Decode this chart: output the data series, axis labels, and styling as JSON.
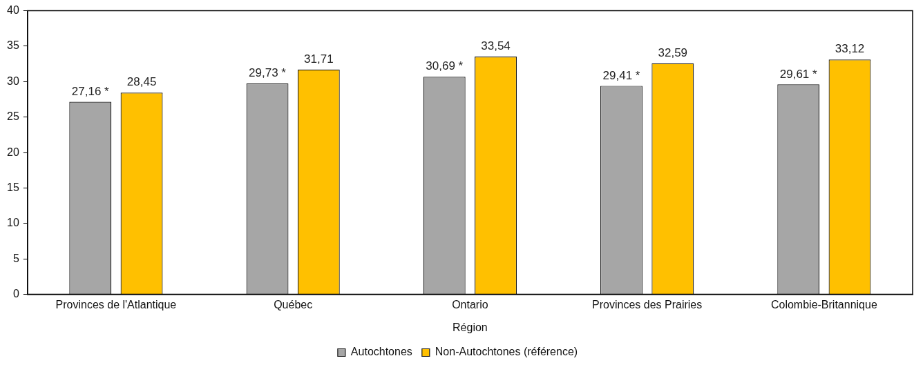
{
  "chart_data": {
    "type": "bar",
    "xlabel": "Région",
    "categories": [
      "Provinces de l'Atlantique",
      "Québec",
      "Ontario",
      "Provinces des Prairies",
      "Colombie-Britannique"
    ],
    "series": [
      {
        "name": "Autochtones",
        "color": "#a6a6a6",
        "values": [
          27.16,
          29.73,
          30.69,
          29.41,
          29.61
        ],
        "value_labels": [
          "27,16 *",
          "29,73 *",
          "30,69 *",
          "29,41 *",
          "29,61 *"
        ]
      },
      {
        "name": "Non-Autochtones (référence)",
        "color": "#ffc000",
        "values": [
          28.45,
          31.71,
          33.54,
          32.59,
          33.12
        ],
        "value_labels": [
          "28,45",
          "31,71",
          "33,54",
          "32,59",
          "33,12"
        ]
      }
    ],
    "ylim": [
      0,
      40
    ],
    "yticks": [
      0,
      5,
      10,
      15,
      20,
      25,
      30,
      35,
      40
    ],
    "grid": false,
    "legend": "bottom"
  }
}
